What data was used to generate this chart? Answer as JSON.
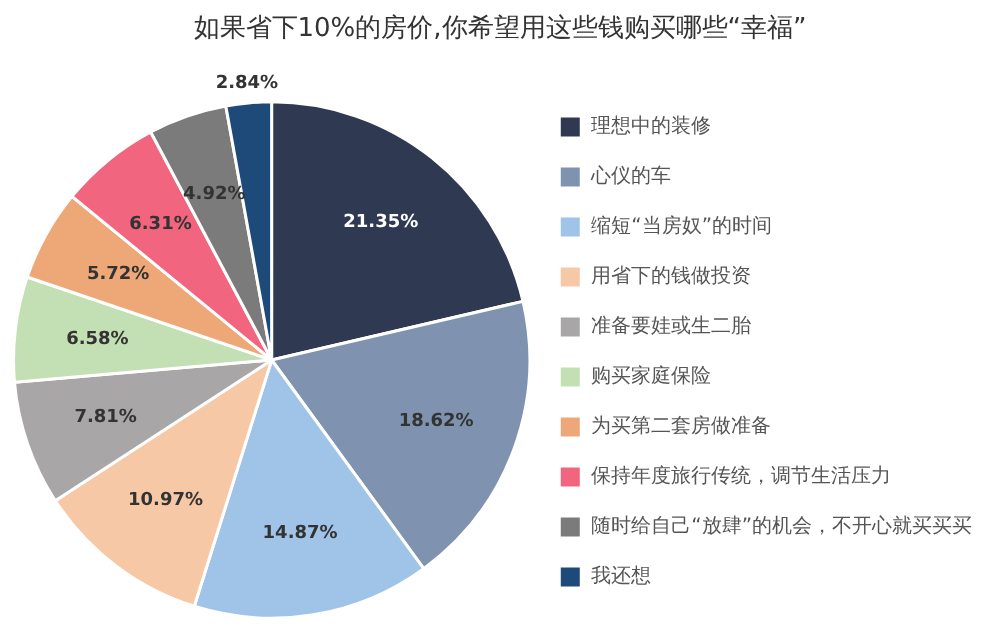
{
  "chart_data": {
    "type": "pie",
    "title": "如果省下10%的房价,你希望用这些钱购买哪些“幸福”",
    "categories": [
      "理想中的装修",
      "心仪的车",
      "缩短“当房奴”的时间",
      "用省下的钱做投资",
      "准备要娃或生二胎",
      "购买家庭保险",
      "为买第二套房做准备",
      "保持年度旅行传统，调节生活压力",
      "随时给自己“放肆”的机会，不开心就买买买",
      "我还想"
    ],
    "values": [
      21.35,
      18.62,
      14.87,
      10.97,
      7.81,
      6.58,
      5.72,
      6.31,
      4.92,
      2.84
    ],
    "colors": [
      "#2f3a52",
      "#7f93b0",
      "#9fc4e8",
      "#f6c8a6",
      "#a9a6a8",
      "#c3e0b4",
      "#eea878",
      "#f2657f",
      "#7b7b7b",
      "#1d4a78"
    ],
    "value_labels": [
      "21.35%",
      "18.62%",
      "14.87%",
      "10.97%",
      "7.81%",
      "6.58%",
      "5.72%",
      "6.31%",
      "4.92%",
      "2.84%"
    ],
    "legend": "right"
  }
}
